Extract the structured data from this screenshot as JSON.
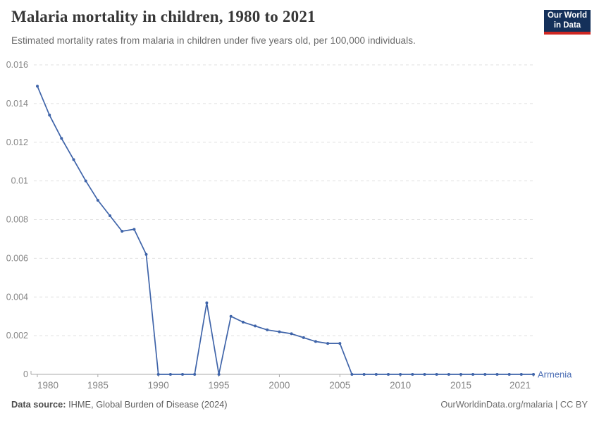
{
  "header": {
    "title": "Malaria mortality in children, 1980 to 2021",
    "subtitle": "Estimated mortality rates from malaria in children under five years old, per 100,000 individuals.",
    "logo": {
      "line1": "Our World",
      "line2": "in Data"
    }
  },
  "chart_data": {
    "type": "line",
    "title": "Malaria mortality in children, 1980 to 2021",
    "xlabel": "",
    "ylabel": "",
    "xlim": [
      1980,
      2021
    ],
    "ylim": [
      0,
      0.016
    ],
    "grid": "horizontal-dashed",
    "legend_position": "line-end-label",
    "x_tick_labels": [
      "1980",
      "1985",
      "1990",
      "1995",
      "2000",
      "2005",
      "2010",
      "2015",
      "2021"
    ],
    "x_ticks": [
      1980,
      1985,
      1990,
      1995,
      2000,
      2005,
      2010,
      2015,
      2021
    ],
    "y_ticks": [
      0,
      0.002,
      0.004,
      0.006,
      0.008,
      0.01,
      0.012,
      0.014,
      0.016
    ],
    "y_tick_labels": [
      "0",
      "0.002",
      "0.004",
      "0.006",
      "0.008",
      "0.01",
      "0.012",
      "0.014",
      "0.016"
    ],
    "x": [
      1980,
      1981,
      1982,
      1983,
      1984,
      1985,
      1986,
      1987,
      1988,
      1989,
      1990,
      1991,
      1992,
      1993,
      1994,
      1995,
      1996,
      1997,
      1998,
      1999,
      2000,
      2001,
      2002,
      2003,
      2004,
      2005,
      2006,
      2007,
      2008,
      2009,
      2010,
      2011,
      2012,
      2013,
      2014,
      2015,
      2016,
      2017,
      2018,
      2019,
      2020,
      2021
    ],
    "series": [
      {
        "name": "Armenia",
        "color": "#3f64a9",
        "values": [
          0.0149,
          0.0134,
          0.0122,
          0.0111,
          0.01,
          0.009,
          0.0082,
          0.0074,
          0.0075,
          0.0062,
          0,
          0,
          0,
          0,
          0.0037,
          0,
          0.003,
          0.0027,
          0.0025,
          0.0023,
          0.0022,
          0.0021,
          0.0019,
          0.0017,
          0.0016,
          0.0016,
          0,
          0,
          0,
          0,
          0,
          0,
          0,
          0,
          0,
          0,
          0,
          0,
          0,
          0,
          0,
          0
        ]
      }
    ],
    "entity_label": "Armenia"
  },
  "footer": {
    "datasource_label": "Data source:",
    "datasource_value": " IHME, Global Burden of Disease (2024)",
    "credit": "OurWorldinData.org/malaria | CC BY"
  },
  "colors": {
    "line": "#3f64a9",
    "entity_label": "#4d6fb5",
    "grid": "#e0e0e0",
    "axis": "#a8a8a8",
    "tick_text": "#858585",
    "title": "#373737",
    "subtitle": "#696969",
    "logo_bg": "#14305a",
    "logo_red": "#cf2722"
  }
}
